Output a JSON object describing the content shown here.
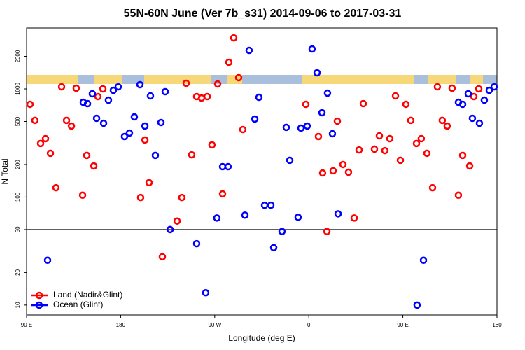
{
  "chart_data": {
    "type": "scatter",
    "title": "55N-60N June (Ver 7b_s31)   2014-09-06 to 2017-03-31",
    "xlabel": "Longitude (deg E)",
    "ylabel": "N Total",
    "log_y": true,
    "hline": 50,
    "legend": "lower left",
    "xlim": [
      90,
      540
    ],
    "ylim": [
      8.1,
      3660
    ],
    "xticks": [
      {
        "value": 90,
        "label": "90 E"
      },
      180,
      {
        "value": 270,
        "label": "90 W"
      },
      {
        "value": 360,
        "label": "0"
      },
      {
        "value": 450,
        "label": "90 E"
      },
      {
        "value": 540,
        "label": "180"
      }
    ],
    "yticks": [
      10,
      20,
      50,
      100,
      200,
      500,
      1000,
      2000
    ],
    "series": [
      {
        "name": "Land (Nadir&Glint)",
        "color": "#ff0000",
        "x": [
          93.3,
          98.0,
          103.4,
          108.1,
          112.8,
          118.1,
          123.5,
          128.2,
          132.9,
          137.5,
          143.6,
          147.6,
          154.3,
          158.3,
          163.0,
          199.1,
          203.2,
          207.2,
          219.9,
          227.3,
          234.0,
          238.6,
          242.7,
          248.0,
          252.7,
          257.4,
          262.8,
          267.4,
          272.8,
          277.5,
          283.5,
          288.2,
          292.9,
          296.9,
          357.2,
          369.2,
          373.2,
          377.3,
          383.3,
          387.3,
          392.7,
          398.0,
          403.4,
          408.1,
          412.1,
          422.8,
          427.5,
          432.8,
          437.5,
          442.9,
          447.6,
          452.9,
          457.6,
          463.0,
          467.6,
          473.0,
          478.4,
          483.0,
          487.7,
          492.4,
          497.1,
          503.1,
          507.2,
          513.9,
          517.9,
          522.6
        ],
        "values": [
          721,
          512,
          313,
          347,
          254,
          122,
          1045,
          512,
          454,
          1015,
          104,
          243,
          194,
          849,
          1000,
          99,
          337,
          136,
          28,
          50,
          60,
          99,
          1127,
          246,
          849,
          824,
          849,
          304,
          1110,
          107,
          1762,
          2967,
          1270,
          421,
          721,
          363,
          167,
          48,
          175,
          504,
          200,
          170,
          64,
          273,
          731,
          278,
          368,
          269,
          347,
          861,
          219,
          721,
          512,
          313,
          347,
          254,
          122,
          1045,
          512,
          454,
          1015,
          104,
          243,
          194,
          849,
          1000
        ]
      },
      {
        "name": "Ocean (Glint)",
        "color": "#0000ff",
        "x": [
          110.1,
          144.2,
          148.3,
          152.9,
          157.0,
          163.7,
          168.3,
          173.0,
          177.7,
          183.7,
          188.4,
          193.1,
          198.5,
          203.2,
          208.5,
          213.2,
          218.6,
          222.6,
          227.3,
          252.7,
          261.4,
          272.1,
          277.5,
          282.8,
          298.9,
          302.9,
          308.3,
          312.3,
          317.7,
          323.7,
          326.4,
          334.4,
          338.4,
          341.8,
          349.8,
          352.5,
          358.5,
          363.2,
          367.9,
          372.6,
          377.9,
          382.6,
          388.0,
          463.6,
          469.7,
          503.1,
          507.2,
          512.5,
          516.5,
          523.2,
          527.9,
          532.6,
          537.3
        ],
        "values": [
          26,
          753,
          731,
          901,
          535,
          482,
          788,
          971,
          1045,
          363,
          391,
          551,
          1094,
          454,
          861,
          243,
          489,
          942,
          50,
          37,
          13,
          64,
          191,
          191,
          68,
          2270,
          527,
          836,
          84,
          84,
          34,
          48,
          441,
          219,
          65,
          434,
          454,
          2339,
          1409,
          603,
          914,
          385,
          70,
          10,
          26,
          753,
          721,
          901,
          535,
          482,
          788,
          971,
          1045
        ]
      }
    ]
  }
}
